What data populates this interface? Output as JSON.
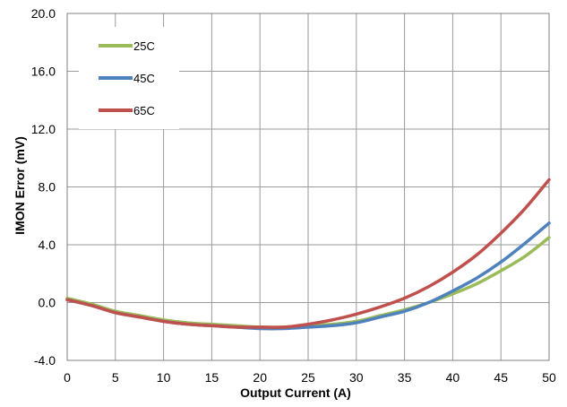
{
  "chart_data": {
    "type": "line",
    "xlabel": "Output Current (A)",
    "ylabel": "IMON Error (mV)",
    "xlim": [
      0,
      50
    ],
    "ylim": [
      -4.0,
      20.0
    ],
    "x_ticks": [
      "0",
      "5",
      "10",
      "15",
      "20",
      "25",
      "30",
      "35",
      "40",
      "45",
      "50"
    ],
    "y_ticks": [
      "-4.0",
      "0.0",
      "4.0",
      "8.0",
      "12.0",
      "16.0",
      "20.0"
    ],
    "grid": true,
    "legend_position": "top-left",
    "series": [
      {
        "name": "25C",
        "color": "#9BBB59",
        "x": [
          0,
          2.5,
          5,
          7.5,
          10,
          12.5,
          15,
          17.5,
          20,
          22.5,
          25,
          27.5,
          30,
          32.5,
          35,
          37.5,
          40,
          42.5,
          45,
          47.5,
          50
        ],
        "y": [
          0.3,
          -0.1,
          -0.6,
          -0.9,
          -1.2,
          -1.4,
          -1.5,
          -1.6,
          -1.7,
          -1.7,
          -1.6,
          -1.5,
          -1.3,
          -0.9,
          -0.5,
          0.0,
          0.6,
          1.3,
          2.2,
          3.2,
          4.5
        ]
      },
      {
        "name": "45C",
        "color": "#4F81BD",
        "x": [
          0,
          2.5,
          5,
          7.5,
          10,
          12.5,
          15,
          17.5,
          20,
          22.5,
          25,
          27.5,
          30,
          32.5,
          35,
          37.5,
          40,
          42.5,
          45,
          47.5,
          50
        ],
        "y": [
          0.2,
          -0.2,
          -0.7,
          -1.0,
          -1.3,
          -1.5,
          -1.6,
          -1.7,
          -1.8,
          -1.8,
          -1.7,
          -1.6,
          -1.4,
          -1.0,
          -0.6,
          0.0,
          0.8,
          1.7,
          2.8,
          4.1,
          5.5
        ]
      },
      {
        "name": "65C",
        "color": "#C0504D",
        "x": [
          0,
          2.5,
          5,
          7.5,
          10,
          12.5,
          15,
          17.5,
          20,
          22.5,
          25,
          27.5,
          30,
          32.5,
          35,
          37.5,
          40,
          42.5,
          45,
          47.5,
          50
        ],
        "y": [
          0.2,
          -0.2,
          -0.7,
          -1.0,
          -1.3,
          -1.5,
          -1.6,
          -1.7,
          -1.7,
          -1.7,
          -1.5,
          -1.2,
          -0.8,
          -0.3,
          0.3,
          1.1,
          2.1,
          3.3,
          4.8,
          6.5,
          8.5
        ]
      }
    ]
  }
}
